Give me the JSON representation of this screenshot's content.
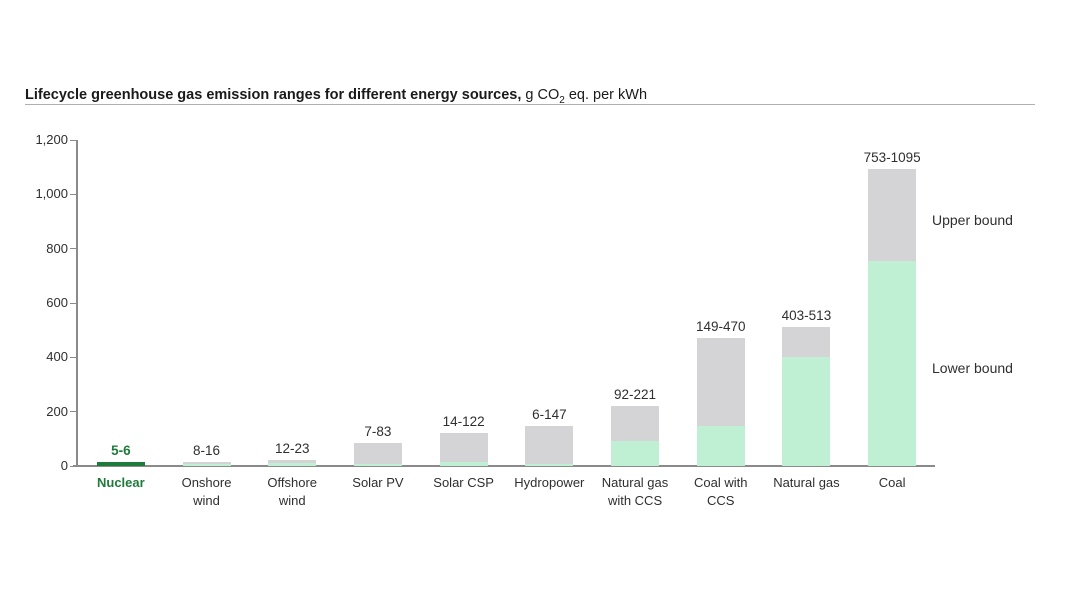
{
  "title": {
    "bold": "Lifecycle greenhouse gas emission ranges for different energy sources,",
    "unit_prefix": " g CO",
    "unit_sub": "2",
    "unit_suffix": " eq. per kWh"
  },
  "legend": {
    "upper": "Upper bound",
    "lower": "Lower bound"
  },
  "axis": {
    "yticks": [
      {
        "value": 0,
        "label": "0"
      },
      {
        "value": 200,
        "label": "200"
      },
      {
        "value": 400,
        "label": "400"
      },
      {
        "value": 600,
        "label": "600"
      },
      {
        "value": 800,
        "label": "800"
      },
      {
        "value": 1000,
        "label": "1,000"
      },
      {
        "value": 1200,
        "label": "1,200"
      }
    ]
  },
  "chart_data": {
    "type": "bar",
    "stacked": true,
    "title": "Lifecycle greenhouse gas emission ranges for different energy sources",
    "unit": "g CO2 eq. per kWh",
    "ylim": [
      0,
      1200
    ],
    "yticks": [
      0,
      200,
      400,
      600,
      800,
      1000,
      1200
    ],
    "grid": false,
    "categories": [
      "Nuclear",
      "Onshore wind",
      "Offshore wind",
      "Solar PV",
      "Solar CSP",
      "Hydropower",
      "Natural gas with CCS",
      "Coal with CCS",
      "Natural gas",
      "Coal"
    ],
    "series": [
      {
        "name": "Lower bound",
        "values": [
          5,
          8,
          12,
          7,
          14,
          6,
          92,
          149,
          403,
          753
        ]
      },
      {
        "name": "Upper bound",
        "values": [
          6,
          16,
          23,
          83,
          122,
          147,
          221,
          470,
          513,
          1095
        ]
      }
    ],
    "bar_value_labels": [
      "5-6",
      "8-16",
      "12-23",
      "7-83",
      "14-122",
      "6-147",
      "92-221",
      "149-470",
      "403-513",
      "753-1095"
    ],
    "category_label_lines": [
      [
        "Nuclear"
      ],
      [
        "Onshore",
        "wind"
      ],
      [
        "Offshore",
        "wind"
      ],
      [
        "Solar PV"
      ],
      [
        "Solar CSP"
      ],
      [
        "Hydropower"
      ],
      [
        "Natural gas",
        "with CCS"
      ],
      [
        "Coal with",
        "CCS"
      ],
      [
        "Natural gas"
      ],
      [
        "Coal"
      ]
    ],
    "highlight_index": 0,
    "annotations": [
      {
        "text": "Upper bound",
        "refers_to": "gray segment"
      },
      {
        "text": "Lower bound",
        "refers_to": "green segment"
      }
    ]
  },
  "colors": {
    "lower_bound_fill": "#bff0d3",
    "upper_bound_fill": "#d4d4d6",
    "highlight_fill": "#1f7b3b",
    "highlight_text": "#1f7b3b",
    "axis_line": "#8a8a8a",
    "text": "#2f2f2f",
    "title_underline": "#b0b0b0"
  }
}
